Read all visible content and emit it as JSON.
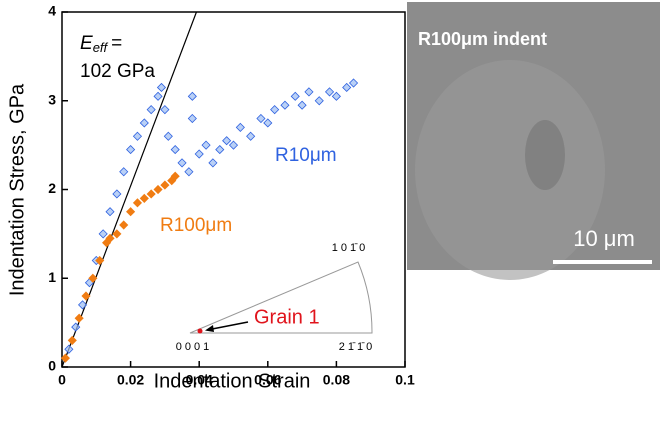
{
  "chart_data": {
    "type": "scatter",
    "x_label": "Indentation Strain",
    "y_label": "Indentation Stress, GPa",
    "xlim": [
      0,
      0.1
    ],
    "ylim": [
      0,
      4
    ],
    "xticks": [
      0,
      0.02,
      0.04,
      0.06,
      0.08,
      0.1
    ],
    "yticks": [
      0,
      1,
      2,
      3,
      4
    ],
    "series": [
      {
        "name": "R10μm",
        "color": "#2f62e0",
        "x": [
          0.002,
          0.004,
          0.006,
          0.008,
          0.01,
          0.012,
          0.014,
          0.016,
          0.018,
          0.02,
          0.022,
          0.024,
          0.026,
          0.028,
          0.029,
          0.03,
          0.031,
          0.033,
          0.035,
          0.037,
          0.038,
          0.038,
          0.04,
          0.042,
          0.044,
          0.046,
          0.048,
          0.05,
          0.052,
          0.055,
          0.058,
          0.06,
          0.062,
          0.065,
          0.068,
          0.07,
          0.072,
          0.075,
          0.078,
          0.08,
          0.083,
          0.085
        ],
        "values": [
          0.2,
          0.45,
          0.7,
          0.95,
          1.2,
          1.5,
          1.75,
          1.95,
          2.2,
          2.45,
          2.6,
          2.75,
          2.9,
          3.05,
          3.15,
          2.9,
          2.6,
          2.45,
          2.3,
          2.2,
          3.05,
          2.8,
          2.4,
          2.5,
          2.3,
          2.45,
          2.55,
          2.5,
          2.7,
          2.6,
          2.8,
          2.75,
          2.9,
          2.95,
          3.05,
          2.95,
          3.1,
          3.0,
          3.1,
          3.05,
          3.15,
          3.2
        ]
      },
      {
        "name": "R100μm",
        "color": "#f07c12",
        "x": [
          0.001,
          0.003,
          0.005,
          0.007,
          0.009,
          0.011,
          0.013,
          0.014,
          0.016,
          0.018,
          0.02,
          0.022,
          0.024,
          0.026,
          0.028,
          0.03,
          0.032,
          0.033
        ],
        "values": [
          0.1,
          0.3,
          0.55,
          0.8,
          1.0,
          1.2,
          1.4,
          1.45,
          1.5,
          1.6,
          1.75,
          1.85,
          1.9,
          1.95,
          2.0,
          2.05,
          2.1,
          2.15
        ]
      }
    ],
    "fit_line": {
      "x": [
        0,
        0.0392
      ],
      "y": [
        0,
        4
      ],
      "color": "#000000"
    },
    "annotation": {
      "symbol": "E",
      "subscript": "eff",
      "equals": "=",
      "value": "102 GPa"
    },
    "inset": {
      "poles": [
        "0001",
        "21̄1̄0",
        "101̄0"
      ],
      "grain_label": "Grain 1",
      "grain_color": "#e0141c"
    }
  },
  "image": {
    "label": "R100μm indent",
    "scale_bar": "10 μm"
  }
}
